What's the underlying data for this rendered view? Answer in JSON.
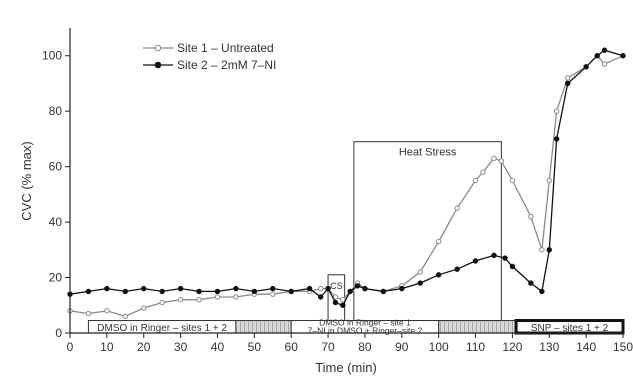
{
  "chart_data": {
    "type": "line",
    "xlabel": "Time (min)",
    "ylabel": "CVC (% max)",
    "xlim": [
      0,
      150
    ],
    "ylim": [
      0,
      110
    ],
    "xticks": [
      0,
      10,
      20,
      30,
      40,
      50,
      60,
      70,
      80,
      90,
      100,
      110,
      120,
      130,
      140,
      150
    ],
    "yticks": [
      0,
      20,
      40,
      60,
      80,
      100
    ],
    "legend_position": "top-left",
    "grid": false,
    "series": [
      {
        "name": "Site 1 – Untreated",
        "marker": "open-circle",
        "color": "#8a8a8a",
        "x": [
          0,
          5,
          10,
          15,
          20,
          25,
          30,
          35,
          40,
          45,
          50,
          55,
          60,
          65,
          68,
          70,
          72,
          74,
          76,
          78,
          80,
          85,
          90,
          95,
          100,
          105,
          110,
          112,
          115,
          117,
          120,
          125,
          128,
          130,
          132,
          135,
          140,
          143,
          145,
          150
        ],
        "values": [
          8,
          7,
          8,
          6,
          9,
          11,
          12,
          12,
          13,
          13,
          14,
          14,
          15,
          15,
          16,
          16,
          13,
          12,
          15,
          18,
          16,
          15,
          17,
          22,
          33,
          45,
          55,
          58,
          63,
          62,
          55,
          42,
          30,
          55,
          80,
          92,
          96,
          100,
          97,
          100
        ]
      },
      {
        "name": "Site 2 – 2mM 7–NI",
        "marker": "filled-circle",
        "color": "#111111",
        "x": [
          0,
          5,
          10,
          15,
          20,
          25,
          30,
          35,
          40,
          45,
          50,
          55,
          60,
          65,
          68,
          70,
          72,
          74,
          76,
          78,
          80,
          85,
          90,
          95,
          100,
          105,
          110,
          115,
          118,
          120,
          125,
          128,
          130,
          132,
          135,
          140,
          143,
          145,
          150
        ],
        "values": [
          14,
          15,
          16,
          15,
          16,
          15,
          16,
          15,
          15,
          16,
          15,
          16,
          15,
          16,
          13,
          16,
          11,
          10,
          15,
          17,
          16,
          15,
          16,
          18,
          21,
          23,
          26,
          28,
          27,
          24,
          18,
          15,
          30,
          70,
          90,
          96,
          100,
          102,
          100
        ]
      }
    ],
    "annotations": [
      {
        "label": "Heat Stress",
        "x_start": 77,
        "x_end": 117,
        "y_top": 69
      },
      {
        "label": "CS",
        "x_start": 70,
        "x_end": 74.5,
        "y_top": 21
      }
    ],
    "protocol_bar": {
      "y_bottom": 0,
      "y_top": 4.5,
      "segments": [
        {
          "label": "DMSO in Ringer – sites 1 + 2",
          "label2": "",
          "x_start": 5,
          "x_end": 45,
          "style": "white"
        },
        {
          "label": "",
          "label2": "",
          "x_start": 45,
          "x_end": 60,
          "style": "hatched"
        },
        {
          "label": "DMSO in Ringer – site 1",
          "label2": "7–NI in DMSO + Ringer–site 2",
          "x_start": 60,
          "x_end": 100,
          "style": "white"
        },
        {
          "label": "",
          "label2": "",
          "x_start": 100,
          "x_end": 121,
          "style": "hatched"
        },
        {
          "label": "SNP – sites 1 + 2",
          "label2": "",
          "x_start": 121,
          "x_end": 150,
          "style": "dark"
        }
      ]
    }
  }
}
